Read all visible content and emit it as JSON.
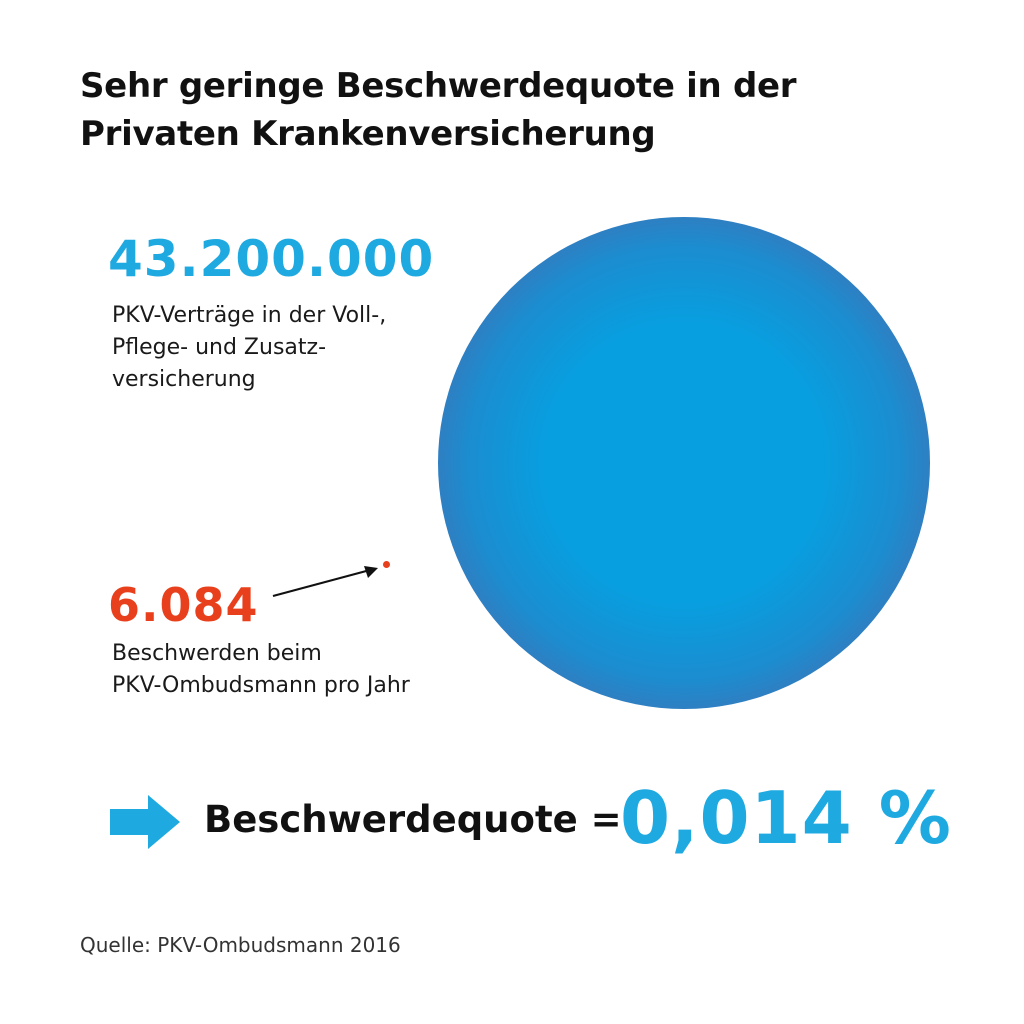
{
  "title": {
    "line1": "Sehr geringe Beschwerdequote in der",
    "line2": "Privaten Krankenversicherung"
  },
  "contracts": {
    "value": "43.200.000",
    "desc_line1": "PKV-Verträge in der Voll-,",
    "desc_line2": "Pflege- und Zusatz-",
    "desc_line3": "versicherung"
  },
  "complaints": {
    "value": "6.084",
    "desc_line1": "Beschwerden beim",
    "desc_line2": "PKV-Ombudsmann pro Jahr"
  },
  "quote": {
    "label": "Beschwerdequote =",
    "value": "0,014 %"
  },
  "source": "Quelle: PKV-Ombudsmann 2016",
  "colors": {
    "accent_blue": "#1fa9e1",
    "accent_red": "#e8401c",
    "circle_outer": "#4a6aa6",
    "circle_inner": "#079fe0"
  },
  "icons": {
    "pointer": "arrow-right-icon",
    "quote_marker": "block-arrow-right-icon"
  }
}
